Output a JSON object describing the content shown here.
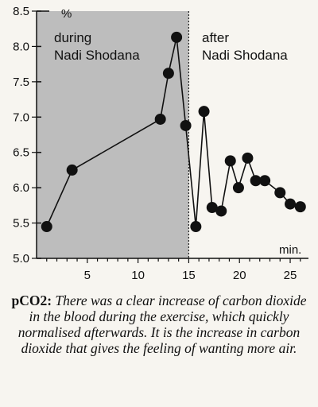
{
  "chart_data": {
    "type": "line",
    "x": [
      1,
      3.5,
      12.2,
      13,
      13.8,
      14.7,
      15.7,
      16.5,
      17.3,
      18.2,
      19.1,
      19.9,
      20.8,
      21.6,
      22.5,
      24,
      25,
      26
    ],
    "y": [
      5.45,
      6.25,
      6.97,
      7.62,
      8.13,
      6.88,
      5.45,
      7.08,
      5.72,
      5.67,
      6.38,
      6.0,
      6.42,
      6.1,
      6.1,
      5.93,
      5.77,
      5.73
    ],
    "xlim": [
      0,
      26.8
    ],
    "ylim": [
      5.0,
      8.5
    ],
    "x_ticks": [
      "5",
      "10",
      "15",
      "20",
      "25"
    ],
    "x_tick_values": [
      5,
      10,
      15,
      20,
      25
    ],
    "y_ticks": [
      "5.0",
      "5.5",
      "6.0",
      "6.5",
      "7.0",
      "7.5",
      "8.0",
      "8.5"
    ],
    "y_tick_values": [
      5.0,
      5.5,
      6.0,
      6.5,
      7.0,
      7.5,
      8.0,
      8.5
    ],
    "ylabel": "%",
    "xlabel": "min.",
    "shaded_region_x": [
      0,
      15
    ],
    "annotations": {
      "during_line1": "during",
      "during_line2": "Nadi Shodana",
      "after_line1": "after",
      "after_line2": "Nadi Shodana"
    },
    "colors": {
      "shade": "#bdbdbd",
      "line": "#111111",
      "marker": "#111111"
    }
  },
  "caption": {
    "lead": "pCO2:",
    "text": " There was a clear increase of carbon dioxide in the blood during the exercise, which quickly normalised afterwards. It is the increase in carbon dioxide that gives the feeling of wanting more air."
  }
}
